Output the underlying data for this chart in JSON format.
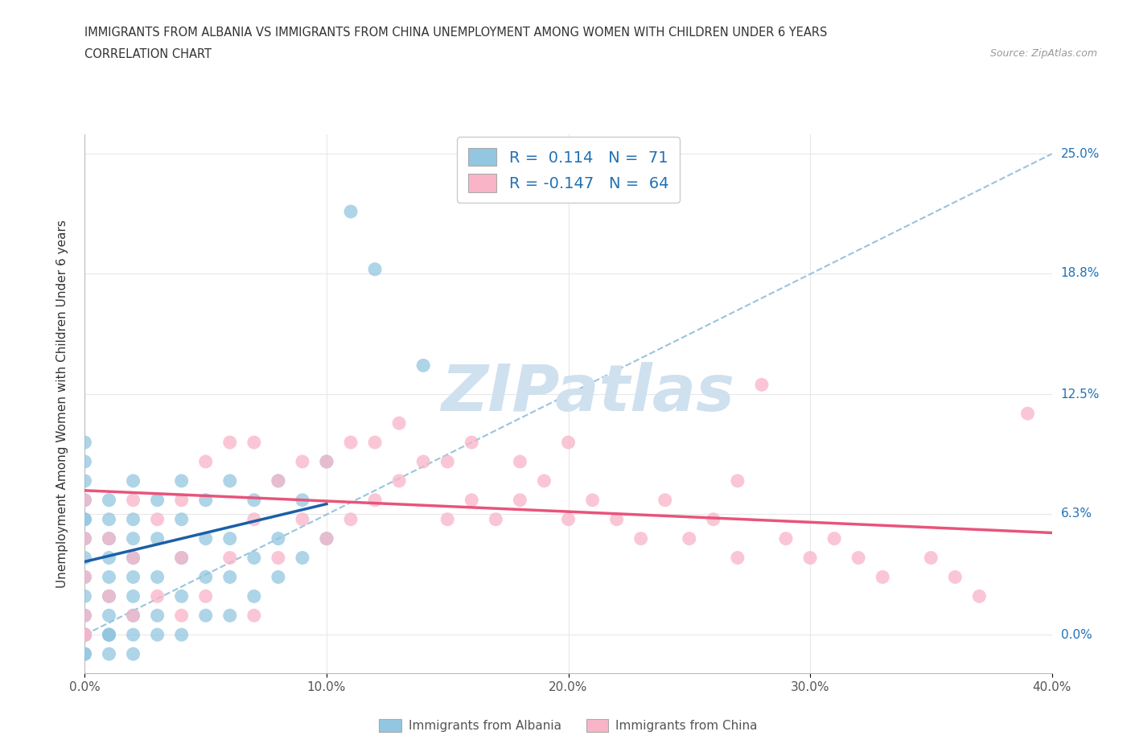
{
  "title_line1": "IMMIGRANTS FROM ALBANIA VS IMMIGRANTS FROM CHINA UNEMPLOYMENT AMONG WOMEN WITH CHILDREN UNDER 6 YEARS",
  "title_line2": "CORRELATION CHART",
  "source": "Source: ZipAtlas.com",
  "ylabel": "Unemployment Among Women with Children Under 6 years",
  "xmin": 0.0,
  "xmax": 0.4,
  "ymin": -0.02,
  "ymax": 0.26,
  "yticks": [
    0.0,
    0.063,
    0.125,
    0.188,
    0.25
  ],
  "ytick_labels": [
    "0.0%",
    "6.3%",
    "12.5%",
    "18.8%",
    "25.0%"
  ],
  "xticks": [
    0.0,
    0.1,
    0.2,
    0.3,
    0.4
  ],
  "xtick_labels": [
    "0.0%",
    "10.0%",
    "20.0%",
    "30.0%",
    "40.0%"
  ],
  "albania_color": "#93c6e0",
  "china_color": "#f9b4c8",
  "albania_R": 0.114,
  "albania_N": 71,
  "china_R": -0.147,
  "china_N": 64,
  "watermark": "ZIPatlas",
  "watermark_color": "#cfe0ef",
  "albania_scatter_x": [
    0.0,
    0.0,
    0.0,
    0.0,
    0.0,
    0.0,
    0.0,
    0.0,
    0.0,
    0.0,
    0.0,
    0.0,
    0.0,
    0.0,
    0.0,
    0.0,
    0.0,
    0.0,
    0.0,
    0.0,
    0.01,
    0.01,
    0.01,
    0.01,
    0.01,
    0.01,
    0.01,
    0.01,
    0.01,
    0.01,
    0.01,
    0.02,
    0.02,
    0.02,
    0.02,
    0.02,
    0.02,
    0.02,
    0.02,
    0.02,
    0.03,
    0.03,
    0.03,
    0.03,
    0.03,
    0.04,
    0.04,
    0.04,
    0.04,
    0.04,
    0.05,
    0.05,
    0.05,
    0.05,
    0.06,
    0.06,
    0.06,
    0.06,
    0.07,
    0.07,
    0.07,
    0.08,
    0.08,
    0.08,
    0.09,
    0.09,
    0.1,
    0.1,
    0.11,
    0.12,
    0.14
  ],
  "albania_scatter_y": [
    -0.01,
    -0.01,
    0.0,
    0.0,
    0.0,
    0.0,
    0.0,
    0.0,
    0.0,
    0.01,
    0.02,
    0.03,
    0.04,
    0.05,
    0.06,
    0.06,
    0.07,
    0.08,
    0.09,
    0.1,
    -0.01,
    0.0,
    0.0,
    0.0,
    0.01,
    0.02,
    0.03,
    0.04,
    0.05,
    0.06,
    0.07,
    -0.01,
    0.0,
    0.01,
    0.02,
    0.03,
    0.04,
    0.05,
    0.06,
    0.08,
    0.0,
    0.01,
    0.03,
    0.05,
    0.07,
    0.0,
    0.02,
    0.04,
    0.06,
    0.08,
    0.01,
    0.03,
    0.05,
    0.07,
    0.01,
    0.03,
    0.05,
    0.08,
    0.02,
    0.04,
    0.07,
    0.03,
    0.05,
    0.08,
    0.04,
    0.07,
    0.05,
    0.09,
    0.22,
    0.19,
    0.14
  ],
  "china_scatter_x": [
    0.0,
    0.0,
    0.0,
    0.0,
    0.0,
    0.0,
    0.01,
    0.01,
    0.02,
    0.02,
    0.02,
    0.03,
    0.03,
    0.04,
    0.04,
    0.04,
    0.05,
    0.05,
    0.06,
    0.06,
    0.07,
    0.07,
    0.07,
    0.08,
    0.08,
    0.09,
    0.09,
    0.1,
    0.1,
    0.11,
    0.11,
    0.12,
    0.12,
    0.13,
    0.13,
    0.14,
    0.15,
    0.15,
    0.16,
    0.16,
    0.17,
    0.18,
    0.18,
    0.19,
    0.2,
    0.2,
    0.21,
    0.22,
    0.23,
    0.24,
    0.25,
    0.26,
    0.27,
    0.27,
    0.28,
    0.29,
    0.3,
    0.31,
    0.32,
    0.33,
    0.35,
    0.36,
    0.37,
    0.39
  ],
  "china_scatter_y": [
    0.0,
    0.0,
    0.01,
    0.03,
    0.05,
    0.07,
    0.02,
    0.05,
    0.01,
    0.04,
    0.07,
    0.02,
    0.06,
    0.01,
    0.04,
    0.07,
    0.02,
    0.09,
    0.04,
    0.1,
    0.01,
    0.06,
    0.1,
    0.04,
    0.08,
    0.06,
    0.09,
    0.05,
    0.09,
    0.06,
    0.1,
    0.07,
    0.1,
    0.08,
    0.11,
    0.09,
    0.06,
    0.09,
    0.07,
    0.1,
    0.06,
    0.07,
    0.09,
    0.08,
    0.06,
    0.1,
    0.07,
    0.06,
    0.05,
    0.07,
    0.05,
    0.06,
    0.04,
    0.08,
    0.13,
    0.05,
    0.04,
    0.05,
    0.04,
    0.03,
    0.04,
    0.03,
    0.02,
    0.115
  ],
  "trendline_albania_color": "#1a5fa8",
  "trendline_china_color": "#e8547a",
  "trendline_dashed_color": "#99c4de",
  "grid_color": "#e8e8e8",
  "albania_trend_x0": 0.0,
  "albania_trend_x1": 0.1,
  "albania_trend_y0": 0.038,
  "albania_trend_y1": 0.068,
  "china_trend_x0": 0.0,
  "china_trend_x1": 0.4,
  "china_trend_y0": 0.075,
  "china_trend_y1": 0.053
}
